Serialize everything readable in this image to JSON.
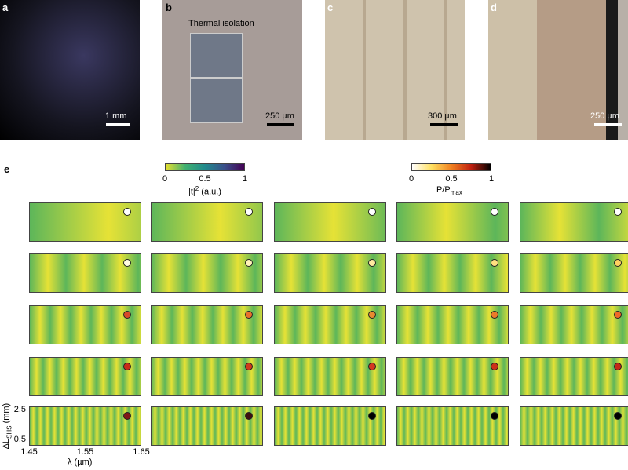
{
  "panels": {
    "a": {
      "label": "a",
      "scale_bar": "1 mm"
    },
    "b": {
      "label": "b",
      "annotation": "Thermal isolation",
      "scale_bar": "250 µm"
    },
    "c": {
      "label": "c",
      "scale_bar": "300 µm"
    },
    "d": {
      "label": "d",
      "scale_bar": "250 µm"
    },
    "e": {
      "label": "e"
    }
  },
  "colorbars": [
    {
      "ticks": [
        0,
        0.5,
        1
      ],
      "label": {
        "main": "|t|",
        "sup": "2",
        "tail": " (a.u.)"
      }
    },
    {
      "ticks": [
        0,
        0.5,
        1
      ],
      "label": {
        "main": "P/P",
        "sub": "max"
      }
    }
  ],
  "axes": {
    "y_label": {
      "main": "ΔL",
      "sub": "SHS",
      "tail": " (mm)"
    },
    "yticks": [
      2.5,
      0.5
    ],
    "x_label": "λ (µm)",
    "xticks": [
      1.45,
      1.55,
      1.65
    ]
  },
  "dot_colors": [
    [
      "#ffffff",
      "#ffffff",
      "#ffffff",
      "#ffffff",
      "#ffffff"
    ],
    [
      "#fffbe0",
      "#fff3b8",
      "#ffeaa0",
      "#ffe080",
      "#ffd060"
    ],
    [
      "#d84a2a",
      "#e8702c",
      "#e88a30",
      "#ec7a2a",
      "#ee6a28"
    ],
    [
      "#c82a18",
      "#d03a1c",
      "#d43820",
      "#cc3018",
      "#c42818"
    ],
    [
      "#801818",
      "#401010",
      "#000000",
      "#000000",
      "#000000"
    ]
  ]
}
